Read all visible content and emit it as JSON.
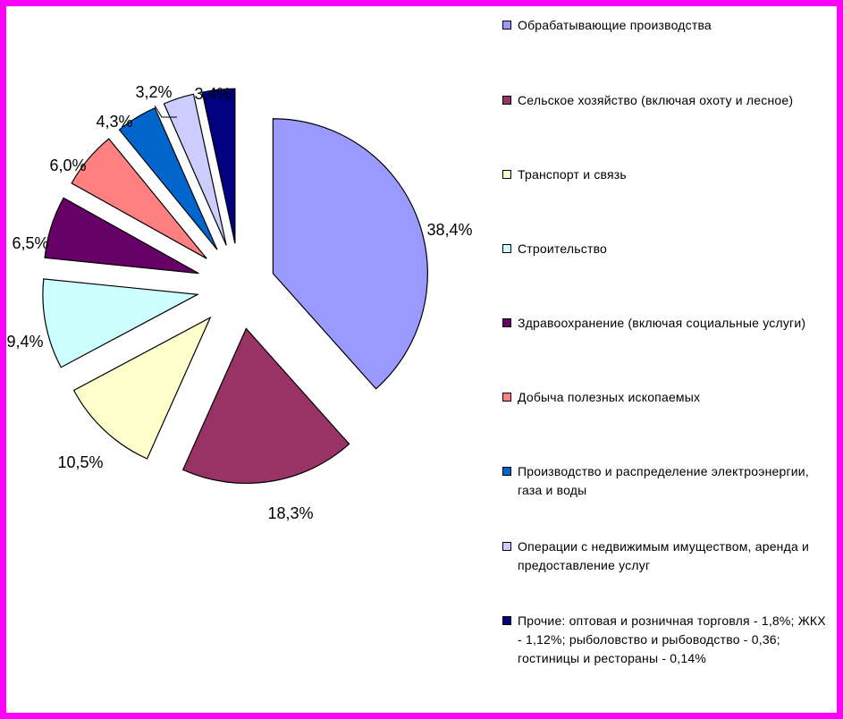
{
  "chart_data": {
    "type": "pie",
    "exploded": true,
    "slices": [
      {
        "label": "Обрабатывающие производства",
        "value": 38.4,
        "value_label": "38,4%",
        "color": "#9999ff"
      },
      {
        "label": "Сельское хозяйство (включая охоту и лесное)",
        "value": 18.3,
        "value_label": "18,3%",
        "color": "#993366"
      },
      {
        "label": "Транспорт и связь",
        "value": 10.5,
        "value_label": "10,5%",
        "color": "#ffffcc"
      },
      {
        "label": "Строительство",
        "value": 9.4,
        "value_label": "9,4%",
        "color": "#ccffff"
      },
      {
        "label": "Здравоохранение (включая социальные услуги)",
        "value": 6.5,
        "value_label": "6,5%",
        "color": "#660066"
      },
      {
        "label": "Добыча полезных ископаемых",
        "value": 6.0,
        "value_label": "6,0%",
        "color": "#ff8080"
      },
      {
        "label": "Производство и распределение электроэнергии, газа и воды",
        "value": 4.3,
        "value_label": "4,3%",
        "color": "#0066cc"
      },
      {
        "label": "Операции с недвижимым имуществом, аренда и предоставление услуг",
        "value": 3.2,
        "value_label": "3,2%",
        "color": "#ccccff"
      },
      {
        "label": "Прочие: оптовая и розничная торговля - 1,8%; ЖКХ - 1,12%; рыболовство и рыбоводство - 0,36; гостиницы и рестораны - 0,14%",
        "value": 3.4,
        "value_label": "3,4%",
        "color": "#000080"
      }
    ],
    "legend_position": "right",
    "border_color": "#ff00ff"
  }
}
